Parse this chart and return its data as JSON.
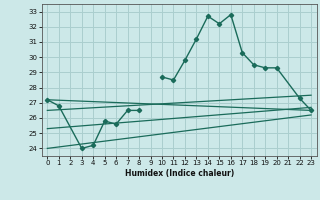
{
  "title": "",
  "xlabel": "Humidex (Indice chaleur)",
  "background_color": "#cce8e8",
  "grid_color": "#aacece",
  "line_color": "#1a6b5a",
  "xlim": [
    -0.5,
    23.5
  ],
  "ylim": [
    23.5,
    33.5
  ],
  "yticks": [
    24,
    25,
    26,
    27,
    28,
    29,
    30,
    31,
    32,
    33
  ],
  "xticks": [
    0,
    1,
    2,
    3,
    4,
    5,
    6,
    7,
    8,
    9,
    10,
    11,
    12,
    13,
    14,
    15,
    16,
    17,
    18,
    19,
    20,
    21,
    22,
    23
  ],
  "main_x": [
    0,
    1,
    3,
    4,
    5,
    6,
    7,
    8,
    10,
    11,
    12,
    13,
    14,
    15,
    16,
    17,
    18,
    19,
    20,
    22,
    23
  ],
  "main_y": [
    27.2,
    26.8,
    24.0,
    24.2,
    25.8,
    25.6,
    26.5,
    26.5,
    28.7,
    28.5,
    29.8,
    31.2,
    32.7,
    32.2,
    32.8,
    30.3,
    29.5,
    29.3,
    29.3,
    27.3,
    26.5
  ],
  "trend1_x": [
    0,
    23
  ],
  "trend1_y": [
    27.2,
    26.5
  ],
  "trend2_x": [
    0,
    23
  ],
  "trend2_y": [
    26.5,
    27.5
  ],
  "trend3_x": [
    0,
    23
  ],
  "trend3_y": [
    25.3,
    26.7
  ],
  "trend4_x": [
    0,
    23
  ],
  "trend4_y": [
    24.0,
    26.2
  ]
}
